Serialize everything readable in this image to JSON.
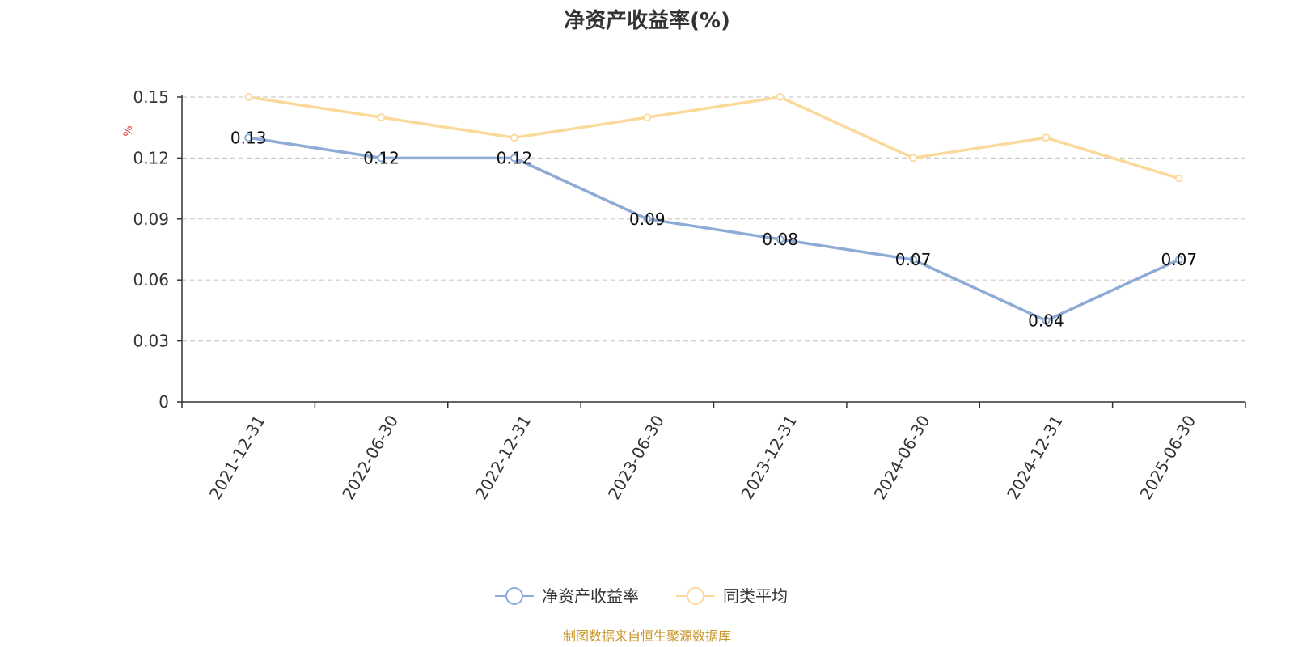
{
  "chart_data": {
    "type": "line",
    "title": "净资产收益率(%)",
    "ylabel": "%",
    "xlabel": "",
    "categories": [
      "2021-12-31",
      "2022-06-30",
      "2022-12-31",
      "2023-06-30",
      "2023-12-31",
      "2024-06-30",
      "2024-12-31",
      "2025-06-30"
    ],
    "ylim": [
      0,
      0.15
    ],
    "yticks": [
      "0",
      "0.03",
      "0.06",
      "0.09",
      "0.12",
      "0.15"
    ],
    "grid": true,
    "legend_position": "bottom",
    "series": [
      {
        "name": "净资产收益率",
        "color": "#8eabd6",
        "values": [
          0.13,
          0.12,
          0.12,
          0.09,
          0.08,
          0.07,
          0.04,
          0.07
        ],
        "labels": [
          "0.13",
          "0.12",
          "0.12",
          "0.09",
          "0.08",
          "0.07",
          "0.04",
          "0.07"
        ]
      },
      {
        "name": "同类平均",
        "color": "#fbd99a",
        "values": [
          0.15,
          0.14,
          0.13,
          0.14,
          0.15,
          0.12,
          0.13,
          0.11
        ]
      }
    ]
  },
  "source_text": "制图数据来自恒生聚源数据库"
}
